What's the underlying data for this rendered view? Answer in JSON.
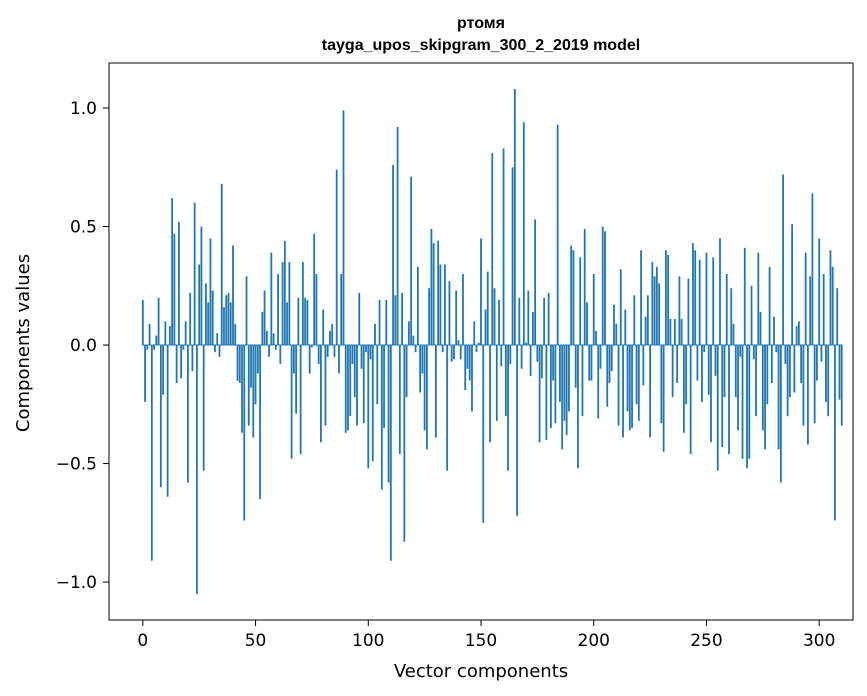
{
  "chart_data": {
    "type": "bar",
    "title": "ртомя",
    "subtitle": "tayga_upos_skipgram_300_2_2019 model",
    "xlabel": "Vector components",
    "ylabel": "Components values",
    "xlim": [
      -15,
      315
    ],
    "ylim": [
      -1.16,
      1.19
    ],
    "xticks": [
      0,
      50,
      100,
      150,
      200,
      250,
      300
    ],
    "yticks": [
      -1.0,
      -0.5,
      0.0,
      0.5,
      1.0
    ],
    "xtick_labels": [
      "0",
      "50",
      "100",
      "150",
      "200",
      "250",
      "300"
    ],
    "ytick_labels": [
      "−1.0",
      "−0.5",
      "0.0",
      "0.5",
      "1.0"
    ],
    "bar_color": "#1f77b4",
    "grid": false,
    "series": [
      {
        "name": "components",
        "values": [
          0.19,
          -0.24,
          -0.02,
          0.09,
          -0.91,
          -0.02,
          0.04,
          0.2,
          -0.6,
          -0.21,
          0.1,
          -0.64,
          0.08,
          0.62,
          0.47,
          -0.16,
          0.52,
          -0.14,
          -0.02,
          0.1,
          -0.58,
          0.22,
          -0.11,
          0.6,
          -1.05,
          0.34,
          0.5,
          -0.53,
          0.26,
          0.18,
          0.45,
          0.23,
          -0.03,
          0.05,
          -0.05,
          0.68,
          0.16,
          0.21,
          0.22,
          0.18,
          0.42,
          0.09,
          -0.15,
          -0.16,
          -0.37,
          -0.74,
          0.29,
          -0.34,
          -0.18,
          -0.39,
          -0.25,
          -0.12,
          -0.65,
          0.14,
          0.23,
          0.06,
          -0.05,
          0.39,
          0.05,
          -0.02,
          0.3,
          -0.08,
          0.35,
          0.44,
          0.18,
          0.35,
          -0.48,
          -0.12,
          -0.29,
          0.2,
          -0.46,
          0.35,
          0.2,
          0.19,
          -0.12,
          -0.01,
          0.47,
          0.3,
          -0.08,
          -0.41,
          0.15,
          -0.34,
          -0.05,
          0.06,
          0.09,
          -0.05,
          0.74,
          -0.12,
          0.3,
          0.99,
          -0.37,
          -0.36,
          -0.3,
          -0.08,
          -0.22,
          -0.34,
          0.22,
          -0.1,
          -0.33,
          -0.03,
          -0.52,
          -0.06,
          -0.49,
          0.09,
          -0.25,
          0.19,
          -0.61,
          -0.35,
          0.19,
          -0.58,
          -0.91,
          0.76,
          0.21,
          0.92,
          -0.46,
          0.22,
          -0.83,
          -0.22,
          0.1,
          0.71,
          0.04,
          -0.03,
          0.33,
          -0.2,
          -0.12,
          -0.36,
          -0.44,
          0.24,
          0.49,
          0.43,
          -0.39,
          0.44,
          0.34,
          -0.03,
          0.34,
          -0.53,
          0.27,
          -0.07,
          -0.06,
          0.23,
          0.02,
          -0.06,
          0.3,
          -0.19,
          -0.1,
          -0.15,
          -0.28,
          0.1,
          -0.03,
          0.01,
          0.45,
          -0.75,
          0.15,
          0.31,
          -0.41,
          0.81,
          0.24,
          -0.32,
          0.19,
          -0.09,
          0.83,
          -0.3,
          -0.53,
          -0.08,
          0.75,
          1.08,
          -0.72,
          0.2,
          -0.1,
          0.94,
          0.01,
          0.23,
          -0.13,
          0.14,
          0.53,
          -0.07,
          -0.41,
          -0.14,
          0.2,
          -0.4,
          0.22,
          -0.35,
          -0.15,
          -0.33,
          0.93,
          -0.24,
          -0.44,
          -0.32,
          -0.38,
          -0.28,
          0.42,
          0.4,
          -0.18,
          -0.52,
          0.37,
          -0.3,
          0.49,
          0.18,
          -0.15,
          -0.15,
          0.3,
          0.06,
          -0.31,
          -0.1,
          0.5,
          0.48,
          -0.26,
          -0.16,
          -0.11,
          0.17,
          0.09,
          -0.34,
          0.32,
          -0.39,
          0.15,
          -0.28,
          -0.36,
          -0.35,
          0.21,
          -0.25,
          -0.32,
          0.4,
          -0.17,
          0.12,
          0.21,
          -0.39,
          0.35,
          0.29,
          0.33,
          0.26,
          -0.33,
          -0.45,
          0.4,
          0.38,
          0.11,
          -0.22,
          0.11,
          -0.16,
          0.29,
          0.11,
          -0.37,
          -0.25,
          0.28,
          -0.46,
          0.43,
          0.4,
          -0.15,
          0.36,
          -0.24,
          -0.03,
          0.39,
          -0.21,
          -0.41,
          0.37,
          -0.13,
          -0.53,
          0.45,
          -0.43,
          -0.22,
          0.3,
          -0.46,
          0.24,
          0.09,
          -0.22,
          -0.36,
          -0.05,
          -0.48,
          0.41,
          -0.52,
          -0.48,
          0.25,
          -0.06,
          -0.3,
          0.39,
          0.14,
          -0.36,
          -0.44,
          -0.25,
          0.33,
          -0.16,
          0.12,
          -0.03,
          -0.44,
          -0.58,
          0.72,
          -0.08,
          -0.3,
          -0.22,
          0.51,
          -0.2,
          0.08,
          0.1,
          -0.16,
          -0.34,
          0.39,
          -0.42,
          0.29,
          0.64,
          -0.33,
          -0.15,
          0.45,
          -0.07,
          0.3,
          -0.24,
          -0.3,
          0.4,
          0.33,
          -0.74,
          0.24,
          -0.23,
          -0.34
        ]
      }
    ]
  }
}
